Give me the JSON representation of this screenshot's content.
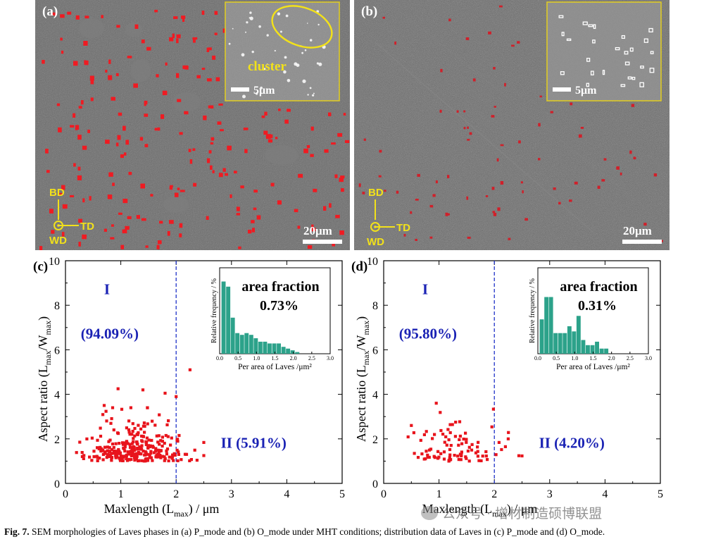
{
  "panels": {
    "a": {
      "label": "(a)",
      "inset_label": "cluster",
      "inset_scale": "5μm",
      "scale_bar": "20μm",
      "axes": {
        "bd": "BD",
        "td": "TD",
        "wd": "WD"
      }
    },
    "b": {
      "label": "(b)",
      "inset_scale": "5μm",
      "scale_bar": "20μm",
      "axes": {
        "bd": "BD",
        "td": "TD",
        "wd": "WD"
      }
    }
  },
  "colors": {
    "points": "#e8141c",
    "divider": "#1f32c8",
    "region_text": "#1a22b4",
    "histogram": "#2ca28a",
    "annotation": "#f2e11a"
  },
  "chart_data": [
    {
      "type": "scatter",
      "panel_label": "(c)",
      "xlabel": "Maxlength (L",
      "xlabel_sub": "max",
      "xlabel_tail": ") / μm",
      "ylabel": "Aspect ratio (L",
      "ylabel_sub1": "max",
      "ylabel_mid": "/W",
      "ylabel_sub2": "max",
      "ylabel_tail": ")",
      "xlim": [
        0,
        5
      ],
      "ylim": [
        0,
        10
      ],
      "x_ticks": [
        "0",
        "1",
        "2",
        "3",
        "4",
        "5"
      ],
      "y_ticks": [
        "0",
        "2",
        "4",
        "6",
        "8",
        "10"
      ],
      "divider_x": 2.0,
      "region_I": {
        "label": "I",
        "percent": "(94.09%)"
      },
      "region_II": {
        "label": "II (5.91%)"
      },
      "n_points": 300,
      "seed": 7,
      "outliers": [
        [
          0.95,
          4.25
        ],
        [
          1.4,
          4.2
        ],
        [
          1.8,
          4.05
        ],
        [
          2.25,
          5.1
        ],
        [
          2.0,
          3.9
        ],
        [
          0.7,
          3.5
        ]
      ],
      "inset": {
        "type": "bar",
        "title": "area fraction",
        "value": "0.73%",
        "xlabel": "Per area of Laves /μm²",
        "ylabel": "Relative frequency / %",
        "x_ticks": [
          "0.0",
          "0.5",
          "1.0",
          "1.5",
          "2.0",
          "2.5",
          "3.0"
        ],
        "bin_width": 0.125,
        "values": [
          21,
          19.5,
          10.5,
          6,
          5.5,
          6,
          5.5,
          4.5,
          3.5,
          3.5,
          3,
          3,
          3,
          2,
          1.5,
          1,
          0.5
        ]
      }
    },
    {
      "type": "scatter",
      "panel_label": "(d)",
      "xlabel": "Maxlength (L",
      "xlabel_sub": "max",
      "xlabel_tail": ") / μm",
      "ylabel": "Aspect ratio (L",
      "ylabel_sub1": "max",
      "ylabel_mid": "/W",
      "ylabel_sub2": "max",
      "ylabel_tail": ")",
      "xlim": [
        0,
        5
      ],
      "ylim": [
        0,
        10
      ],
      "x_ticks": [
        "0",
        "1",
        "2",
        "3",
        "4",
        "5"
      ],
      "y_ticks": [
        "0",
        "2",
        "4",
        "6",
        "8",
        "10"
      ],
      "divider_x": 2.0,
      "region_I": {
        "label": "I",
        "percent": "(95.80%)"
      },
      "region_II": {
        "label": "II (4.20%)"
      },
      "n_points": 90,
      "seed": 19,
      "outliers": [
        [
          0.95,
          3.6
        ],
        [
          0.5,
          2.6
        ],
        [
          1.3,
          2.75
        ],
        [
          2.25,
          2.0
        ],
        [
          2.2,
          1.65
        ]
      ],
      "inset": {
        "type": "bar",
        "title": "area fraction",
        "value": "0.31%",
        "xlabel": "Per area of Laves /μm²",
        "ylabel": "Relative frequency / %",
        "x_ticks": [
          "0.0",
          "0.5",
          "1.0",
          "1.5",
          "2.0",
          "2.5",
          "3.0"
        ],
        "bin_width": 0.125,
        "values": [
          10,
          16.5,
          16.5,
          6,
          6,
          6,
          8,
          6.5,
          11,
          4,
          2.5,
          2.5,
          3.5,
          1.5,
          1.5
        ]
      }
    }
  ],
  "caption": {
    "fig": "Fig. 7.",
    "text": " SEM morphologies of Laves phases in (a) P_mode and (b) O_mode under MHT conditions; distribution data of Laves in (c) P_mode and (d) O_mode."
  },
  "watermark": "公众号 · 增材制造硕博联盟"
}
